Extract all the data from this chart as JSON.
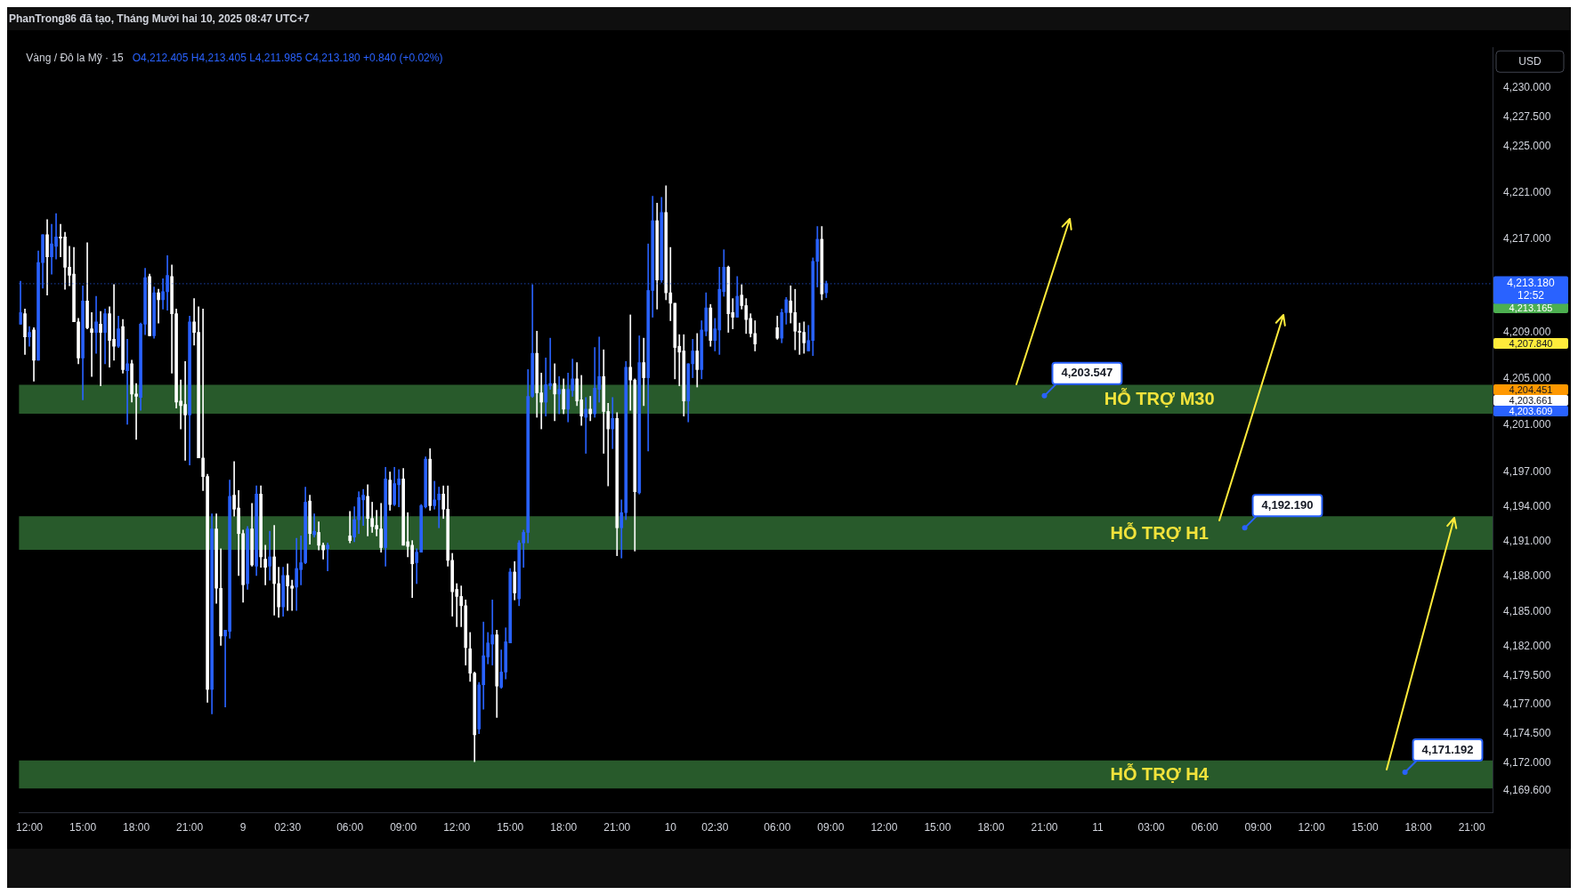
{
  "chart_data": {
    "type": "candlestick",
    "title": "PhanTrong86 đã tạo, Tháng Mười hai 10, 2025 08:47 UTC+7",
    "subtitle": "Vàng / Đô la Mỹ · 15",
    "ylabel": "USD",
    "series": [
      {
        "color": "#2962ff",
        "x": [
          "2025-12-08T11:30",
          "2025-12-08T12:00",
          "2025-12-08T12:30",
          "2025-12-08T12:45",
          "2025-12-08T13:15",
          "2025-12-08T13:30",
          "2025-12-08T15:00",
          "2025-12-08T15:45",
          "2025-12-08T16:15",
          "2025-12-08T17:00",
          "2025-12-08T17:30",
          "2025-12-08T18:15",
          "2025-12-08T18:30",
          "2025-12-08T19:00",
          "2025-12-08T19:30",
          "2025-12-08T19:45",
          "2025-12-08T21:00",
          "2025-12-08T22:15",
          "2025-12-08T23:00",
          "2025-12-08T23:15",
          "2025-12-09T00:15",
          "2025-12-09T00:45",
          "2025-12-09T01:30",
          "2025-12-09T02:15",
          "2025-12-09T03:00",
          "2025-12-09T03:15",
          "2025-12-09T03:30",
          "2025-12-09T04:00",
          "2025-12-09T04:45",
          "2025-12-09T06:15",
          "2025-12-09T06:30",
          "2025-12-09T06:45",
          "2025-12-09T08:00",
          "2025-12-09T08:30",
          "2025-12-09T08:45",
          "2025-12-09T09:45",
          "2025-12-09T10:00",
          "2025-12-09T10:15",
          "2025-12-09T10:45",
          "2025-12-09T11:00",
          "2025-12-09T13:15",
          "2025-12-09T13:30",
          "2025-12-09T13:45",
          "2025-12-09T14:00",
          "2025-12-09T14:30",
          "2025-12-09T14:45",
          "2025-12-09T15:00",
          "2025-12-09T15:30",
          "2025-12-09T15:45",
          "2025-12-09T16:00",
          "2025-12-09T16:15",
          "2025-12-09T17:00",
          "2025-12-09T17:15",
          "2025-12-09T17:45",
          "2025-12-09T18:15",
          "2025-12-09T18:30",
          "2025-12-09T19:15",
          "2025-12-09T19:45",
          "2025-12-09T20:00",
          "2025-12-09T20:45",
          "2025-12-09T21:15",
          "2025-12-09T21:30",
          "2025-12-09T22:15",
          "2025-12-09T22:45",
          "2025-12-09T23:00",
          "2025-12-09T23:30",
          "2025-12-10T01:00",
          "2025-12-10T01:15",
          "2025-12-10T01:45",
          "2025-12-10T02:00",
          "2025-12-10T02:30",
          "2025-12-10T02:45",
          "2025-12-10T03:00",
          "2025-12-10T03:45",
          "2025-12-10T06:15",
          "2025-12-10T06:30",
          "2025-12-10T07:45",
          "2025-12-10T08:00",
          "2025-12-10T08:15",
          "2025-12-10T08:45"
        ],
        "ohlc": [
          [
            4209.7,
            4213.4,
            4209.7,
            4210.7
          ],
          [
            4208.6,
            4209.5,
            4207.8,
            4209.0
          ],
          [
            4206.6,
            4216.0,
            4206.6,
            4215.0
          ],
          [
            4215.0,
            4217.4,
            4212.8,
            4217.4
          ],
          [
            4215.5,
            4218.3,
            4214.0,
            4216.6
          ],
          [
            4216.4,
            4219.2,
            4215.3,
            4217.2
          ],
          [
            4206.8,
            4213.0,
            4203.2,
            4211.7
          ],
          [
            4209.0,
            4212.1,
            4207.2,
            4209.9
          ],
          [
            4209.0,
            4211.0,
            4206.3,
            4210.6
          ],
          [
            4207.8,
            4210.4,
            4207.7,
            4209.3
          ],
          [
            4205.7,
            4208.4,
            4201.1,
            4206.3
          ],
          [
            4203.4,
            4209.8,
            4202.3,
            4209.7
          ],
          [
            4209.7,
            4214.5,
            4208.8,
            4213.7
          ],
          [
            4208.7,
            4212.9,
            4208.5,
            4212.4
          ],
          [
            4211.8,
            4213.6,
            4211.0,
            4212.5
          ],
          [
            4212.5,
            4215.6,
            4210.9,
            4213.9
          ],
          [
            4201.9,
            4210.4,
            4197.6,
            4209.9
          ],
          [
            4178.3,
            4193.4,
            4176.2,
            4192.1
          ],
          [
            4182.9,
            4183.4,
            4176.8,
            4183.4
          ],
          [
            4183.3,
            4196.3,
            4182.7,
            4194.9
          ],
          [
            4187.4,
            4192.3,
            4186.9,
            4192.1
          ],
          [
            4188.9,
            4195.8,
            4188.1,
            4195.1
          ],
          [
            4188.9,
            4191.9,
            4187.7,
            4189.7
          ],
          [
            4185.4,
            4188.8,
            4184.6,
            4188.1
          ],
          [
            4187.1,
            4191.3,
            4185.1,
            4188.7
          ],
          [
            4188.6,
            4191.5,
            4187.3,
            4189.2
          ],
          [
            4189.2,
            4195.7,
            4189.1,
            4194.4
          ],
          [
            4191.6,
            4193.4,
            4191.4,
            4191.9
          ],
          [
            4190.4,
            4190.9,
            4188.5,
            4190.7
          ],
          [
            4191.4,
            4194.0,
            4191.0,
            4192.9
          ],
          [
            4192.9,
            4195.3,
            4191.7,
            4194.8
          ],
          [
            4194.6,
            4195.5,
            4192.4,
            4195.0
          ],
          [
            4190.5,
            4197.4,
            4188.9,
            4196.4
          ],
          [
            4194.2,
            4197.4,
            4194.1,
            4196.0
          ],
          [
            4195.9,
            4197.2,
            4194.0,
            4196.4
          ],
          [
            4189.2,
            4190.4,
            4187.4,
            4190.1
          ],
          [
            4190.1,
            4194.2,
            4190.1,
            4194.1
          ],
          [
            4194.0,
            4198.3,
            4193.9,
            4198.1
          ],
          [
            4194.1,
            4196.2,
            4193.8,
            4194.6
          ],
          [
            4194.6,
            4195.7,
            4192.2,
            4195.1
          ],
          [
            4174.9,
            4178.9,
            4174.5,
            4178.7
          ],
          [
            4178.7,
            4184.1,
            4176.6,
            4181.2
          ],
          [
            4181.1,
            4183.2,
            4180.5,
            4182.3
          ],
          [
            4182.2,
            4186.0,
            4180.4,
            4183.0
          ],
          [
            4178.5,
            4181.7,
            4178.4,
            4179.8
          ],
          [
            4179.8,
            4183.6,
            4179.2,
            4182.4
          ],
          [
            4182.3,
            4188.7,
            4182.3,
            4188.4
          ],
          [
            4186.1,
            4191.1,
            4185.5,
            4190.9
          ],
          [
            4190.9,
            4192.0,
            4188.8,
            4191.8
          ],
          [
            4191.8,
            4205.8,
            4190.9,
            4203.5
          ],
          [
            4203.5,
            4213.1,
            4203.4,
            4207.2
          ],
          [
            4203.0,
            4206.8,
            4201.8,
            4204.5
          ],
          [
            4204.4,
            4208.5,
            4204.1,
            4204.6
          ],
          [
            4203.7,
            4205.2,
            4202.0,
            4204.1
          ],
          [
            4202.4,
            4205.5,
            4201.3,
            4204.1
          ],
          [
            4204.0,
            4206.7,
            4203.5,
            4205.0
          ],
          [
            4201.7,
            4203.4,
            4198.6,
            4202.4
          ],
          [
            4202.0,
            4207.7,
            4201.7,
            4204.2
          ],
          [
            4204.1,
            4208.6,
            4203.0,
            4205.2
          ],
          [
            4200.7,
            4203.4,
            4199.0,
            4201.6
          ],
          [
            4192.2,
            4194.6,
            4189.6,
            4193.5
          ],
          [
            4193.5,
            4206.5,
            4192.9,
            4206.0
          ],
          [
            4195.2,
            4208.7,
            4195.1,
            4206.4
          ],
          [
            4205.1,
            4216.6,
            4198.8,
            4212.6
          ],
          [
            4212.6,
            4220.7,
            4210.3,
            4218.6
          ],
          [
            4213.5,
            4220.6,
            4213.3,
            4219.3
          ],
          [
            4203.1,
            4206.3,
            4201.3,
            4206.3
          ],
          [
            4206.3,
            4208.4,
            4205.1,
            4207.4
          ],
          [
            4205.8,
            4210.0,
            4205.0,
            4209.2
          ],
          [
            4209.1,
            4212.4,
            4208.7,
            4211.1
          ],
          [
            4208.3,
            4210.2,
            4207.4,
            4209.3
          ],
          [
            4209.2,
            4214.6,
            4207.1,
            4212.7
          ],
          [
            4212.5,
            4216.1,
            4212.1,
            4214.6
          ],
          [
            4210.3,
            4213.8,
            4210.3,
            4212.1
          ],
          [
            4208.5,
            4211.0,
            4208.1,
            4210.7
          ],
          [
            4210.7,
            4212.0,
            4209.7,
            4211.8
          ],
          [
            4207.4,
            4209.6,
            4207.4,
            4208.3
          ],
          [
            4208.3,
            4215.4,
            4207.0,
            4215.1
          ],
          [
            4215.1,
            4218.1,
            4212.9,
            4217.0
          ],
          [
            4212.405,
            4213.405,
            4211.985,
            4213.18
          ]
        ]
      },
      {
        "color": "#ffffff",
        "x": [
          "2025-12-08T11:45",
          "2025-12-08T12:15",
          "2025-12-08T13:00",
          "2025-12-08T13:45",
          "2025-12-08T14:00",
          "2025-12-08T14:15",
          "2025-12-08T14:30",
          "2025-12-08T14:45",
          "2025-12-08T15:15",
          "2025-12-08T15:30",
          "2025-12-08T16:00",
          "2025-12-08T16:30",
          "2025-12-08T16:45",
          "2025-12-08T17:15",
          "2025-12-08T17:45",
          "2025-12-08T18:00",
          "2025-12-08T18:45",
          "2025-12-08T19:15",
          "2025-12-08T20:00",
          "2025-12-08T20:15",
          "2025-12-08T20:30",
          "2025-12-08T20:45",
          "2025-12-08T21:15",
          "2025-12-08T21:30",
          "2025-12-08T21:45",
          "2025-12-08T22:00",
          "2025-12-08T22:30",
          "2025-12-08T22:45",
          "2025-12-08T23:30",
          "2025-12-08T23:45",
          "2025-12-09T00:00",
          "2025-12-09T00:30",
          "2025-12-09T01:00",
          "2025-12-09T01:15",
          "2025-12-09T01:45",
          "2025-12-09T02:00",
          "2025-12-09T02:30",
          "2025-12-09T02:45",
          "2025-12-09T03:45",
          "2025-12-09T04:15",
          "2025-12-09T04:30",
          "2025-12-09T06:00",
          "2025-12-09T07:00",
          "2025-12-09T07:15",
          "2025-12-09T07:30",
          "2025-12-09T07:45",
          "2025-12-09T08:15",
          "2025-12-09T09:00",
          "2025-12-09T09:15",
          "2025-12-09T09:30",
          "2025-12-09T10:30",
          "2025-12-09T11:15",
          "2025-12-09T11:30",
          "2025-12-09T11:45",
          "2025-12-09T12:00",
          "2025-12-09T12:15",
          "2025-12-09T12:30",
          "2025-12-09T12:45",
          "2025-12-09T13:00",
          "2025-12-09T14:15",
          "2025-12-09T15:15",
          "2025-12-09T16:30",
          "2025-12-09T16:45",
          "2025-12-09T17:30",
          "2025-12-09T18:00",
          "2025-12-09T18:45",
          "2025-12-09T19:00",
          "2025-12-09T19:30",
          "2025-12-09T20:15",
          "2025-12-09T20:30",
          "2025-12-09T21:00",
          "2025-12-09T21:45",
          "2025-12-09T22:00",
          "2025-12-09T22:30",
          "2025-12-09T23:15",
          "2025-12-09T23:45",
          "2025-12-10T00:00",
          "2025-12-10T00:15",
          "2025-12-10T00:30",
          "2025-12-10T00:45",
          "2025-12-10T01:30",
          "2025-12-10T02:15",
          "2025-12-10T03:15",
          "2025-12-10T03:30",
          "2025-12-10T04:00",
          "2025-12-10T04:15",
          "2025-12-10T04:30",
          "2025-12-10T04:45",
          "2025-12-10T06:00",
          "2025-12-10T06:45",
          "2025-12-10T07:00",
          "2025-12-10T07:15",
          "2025-12-10T07:30",
          "2025-12-10T08:30"
        ],
        "ohlc": [
          [
            4210.6,
            4211.0,
            4207.1,
            4208.6
          ],
          [
            4209.2,
            4209.4,
            4204.8,
            4206.6
          ],
          [
            4217.4,
            4218.7,
            4212.2,
            4215.5
          ],
          [
            4217.2,
            4218.3,
            4215.5,
            4217.1
          ],
          [
            4217.2,
            4217.6,
            4212.7,
            4214.6
          ],
          [
            4214.6,
            4216.4,
            4213.0,
            4213.9
          ],
          [
            4214.0,
            4216.3,
            4209.9,
            4209.9
          ],
          [
            4209.9,
            4210.2,
            4206.3,
            4206.8
          ],
          [
            4211.7,
            4216.7,
            4209.3,
            4209.4
          ],
          [
            4209.3,
            4210.7,
            4205.2,
            4209.0
          ],
          [
            4209.7,
            4210.8,
            4204.4,
            4209.0
          ],
          [
            4210.6,
            4211.2,
            4206.0,
            4208.3
          ],
          [
            4208.4,
            4213.1,
            4206.6,
            4207.8
          ],
          [
            4209.5,
            4210.1,
            4205.5,
            4205.8
          ],
          [
            4206.3,
            4206.6,
            4203.0,
            4203.7
          ],
          [
            4203.7,
            4204.6,
            4199.8,
            4203.5
          ],
          [
            4213.8,
            4214.0,
            4208.7,
            4208.7
          ],
          [
            4212.4,
            4212.7,
            4209.8,
            4211.8
          ],
          [
            4213.8,
            4214.8,
            4205.5,
            4210.6
          ],
          [
            4210.6,
            4211.0,
            4202.5,
            4203.0
          ],
          [
            4203.1,
            4204.9,
            4200.7,
            4202.7
          ],
          [
            4202.8,
            4206.5,
            4198.0,
            4201.9
          ],
          [
            4209.9,
            4211.9,
            4207.9,
            4209.0
          ],
          [
            4209.0,
            4211.2,
            4198.2,
            4198.2
          ],
          [
            4198.2,
            4211.0,
            4195.4,
            4196.6
          ],
          [
            4196.6,
            4196.8,
            4177.2,
            4178.3
          ],
          [
            4192.1,
            4193.4,
            4185.7,
            4187.0
          ],
          [
            4187.0,
            4190.4,
            4182.1,
            4182.9
          ],
          [
            4195.0,
            4197.9,
            4193.2,
            4193.8
          ],
          [
            4193.9,
            4195.4,
            4188.1,
            4191.7
          ],
          [
            4191.7,
            4192.0,
            4185.8,
            4187.3
          ],
          [
            4192.1,
            4194.3,
            4188.9,
            4189.0
          ],
          [
            4195.1,
            4195.8,
            4188.8,
            4189.7
          ],
          [
            4189.5,
            4190.7,
            4187.3,
            4188.8
          ],
          [
            4189.7,
            4192.4,
            4184.7,
            4187.4
          ],
          [
            4187.4,
            4188.8,
            4184.5,
            4185.4
          ],
          [
            4188.1,
            4189.1,
            4185.1,
            4187.2
          ],
          [
            4187.2,
            4187.7,
            4185.1,
            4187.0
          ],
          [
            4194.5,
            4195.0,
            4190.8,
            4191.7
          ],
          [
            4191.8,
            4192.7,
            4190.3,
            4190.7
          ],
          [
            4190.7,
            4190.9,
            4189.5,
            4190.3
          ],
          [
            4191.5,
            4193.6,
            4190.9,
            4191.1
          ],
          [
            4194.9,
            4195.9,
            4191.5,
            4193.0
          ],
          [
            4193.0,
            4194.4,
            4191.8,
            4192.3
          ],
          [
            4192.4,
            4193.7,
            4191.5,
            4192.1
          ],
          [
            4192.1,
            4194.3,
            4190.1,
            4190.5
          ],
          [
            4196.3,
            4197.0,
            4193.7,
            4194.2
          ],
          [
            4196.4,
            4197.3,
            4190.7,
            4190.7
          ],
          [
            4191.0,
            4193.5,
            4189.7,
            4190.6
          ],
          [
            4190.7,
            4191.1,
            4186.2,
            4189.1
          ],
          [
            4198.1,
            4199.0,
            4193.7,
            4194.1
          ],
          [
            4195.1,
            4195.8,
            4193.0,
            4193.8
          ],
          [
            4193.8,
            4195.8,
            4188.9,
            4189.4
          ],
          [
            4189.4,
            4190.0,
            4184.6,
            4186.7
          ],
          [
            4186.9,
            4187.4,
            4183.7,
            4186.3
          ],
          [
            4186.3,
            4187.2,
            4183.7,
            4185.5
          ],
          [
            4185.5,
            4186.0,
            4180.4,
            4181.9
          ],
          [
            4181.8,
            4183.2,
            4179.0,
            4179.7
          ],
          [
            4179.7,
            4179.8,
            4172.1,
            4174.4
          ],
          [
            4183.0,
            4183.4,
            4175.9,
            4178.6
          ],
          [
            4188.4,
            4189.3,
            4186.0,
            4186.6
          ],
          [
            4207.2,
            4209.1,
            4201.7,
            4203.8
          ],
          [
            4203.8,
            4205.5,
            4200.7,
            4203.0
          ],
          [
            4204.6,
            4206.3,
            4201.4,
            4203.7
          ],
          [
            4204.1,
            4205.0,
            4202.0,
            4202.4
          ],
          [
            4205.0,
            4206.4,
            4202.7,
            4203.1
          ],
          [
            4203.2,
            4205.3,
            4201.0,
            4201.8
          ],
          [
            4202.4,
            4203.5,
            4201.4,
            4202.0
          ],
          [
            4205.2,
            4207.5,
            4198.6,
            4202.2
          ],
          [
            4202.2,
            4202.9,
            4195.8,
            4200.7
          ],
          [
            4201.6,
            4202.1,
            4189.8,
            4192.2
          ],
          [
            4206.0,
            4210.5,
            4202.3,
            4204.9
          ],
          [
            4204.9,
            4205.0,
            4190.2,
            4195.3
          ],
          [
            4206.4,
            4208.5,
            4202.7,
            4205.1
          ],
          [
            4218.6,
            4220.1,
            4211.0,
            4213.5
          ],
          [
            4219.3,
            4221.6,
            4211.8,
            4212.4
          ],
          [
            4212.4,
            4216.3,
            4210.0,
            4211.5
          ],
          [
            4211.5,
            4211.5,
            4205.0,
            4207.7
          ],
          [
            4207.8,
            4208.8,
            4204.4,
            4207.3
          ],
          [
            4207.4,
            4208.8,
            4201.8,
            4203.1
          ],
          [
            4207.4,
            4208.9,
            4204.3,
            4205.8
          ],
          [
            4211.1,
            4211.4,
            4207.8,
            4208.3
          ],
          [
            4214.6,
            4214.7,
            4209.0,
            4210.6
          ],
          [
            4210.7,
            4211.9,
            4209.3,
            4210.3
          ],
          [
            4212.2,
            4213.1,
            4211.0,
            4211.3
          ],
          [
            4211.3,
            4211.9,
            4208.9,
            4210.1
          ],
          [
            4210.2,
            4210.6,
            4208.6,
            4208.9
          ],
          [
            4208.9,
            4210.0,
            4207.4,
            4208.0
          ],
          [
            4209.4,
            4210.4,
            4208.4,
            4208.5
          ],
          [
            4211.7,
            4213.0,
            4209.8,
            4210.7
          ],
          [
            4210.7,
            4212.7,
            4207.5,
            4209.1
          ],
          [
            4209.1,
            4209.8,
            4207.1,
            4209.0
          ],
          [
            4209.0,
            4209.9,
            4207.2,
            4208.1
          ],
          [
            4217.0,
            4218.1,
            4211.8,
            4212.3
          ]
        ]
      }
    ],
    "xlim": [
      "2025-12-08T11:25",
      "2025-12-11T22:10"
    ],
    "xticks": [
      {
        "value": "2025-12-08T12:00",
        "label": "12:00"
      },
      {
        "value": "2025-12-08T15:00",
        "label": "15:00"
      },
      {
        "value": "2025-12-08T18:00",
        "label": "18:00"
      },
      {
        "value": "2025-12-08T21:00",
        "label": "21:00"
      },
      {
        "value": "2025-12-09T00:00",
        "label": "9"
      },
      {
        "value": "2025-12-09T02:30",
        "label": "02:30"
      },
      {
        "value": "2025-12-09T06:00",
        "label": "06:00"
      },
      {
        "value": "2025-12-09T09:00",
        "label": "09:00"
      },
      {
        "value": "2025-12-09T12:00",
        "label": "12:00"
      },
      {
        "value": "2025-12-09T15:00",
        "label": "15:00"
      },
      {
        "value": "2025-12-09T18:00",
        "label": "18:00"
      },
      {
        "value": "2025-12-09T21:00",
        "label": "21:00"
      },
      {
        "value": "2025-12-10T00:00",
        "label": "10"
      },
      {
        "value": "2025-12-10T02:30",
        "label": "02:30"
      },
      {
        "value": "2025-12-10T06:00",
        "label": "06:00"
      },
      {
        "value": "2025-12-10T09:00",
        "label": "09:00"
      },
      {
        "value": "2025-12-10T12:00",
        "label": "12:00"
      },
      {
        "value": "2025-12-10T15:00",
        "label": "15:00"
      },
      {
        "value": "2025-12-10T18:00",
        "label": "18:00"
      },
      {
        "value": "2025-12-10T21:00",
        "label": "21:00"
      },
      {
        "value": "2025-12-11T00:00",
        "label": "11"
      },
      {
        "value": "2025-12-11T03:00",
        "label": "03:00"
      },
      {
        "value": "2025-12-11T06:00",
        "label": "06:00"
      },
      {
        "value": "2025-12-11T09:00",
        "label": "09:00"
      },
      {
        "value": "2025-12-11T12:00",
        "label": "12:00"
      },
      {
        "value": "2025-12-11T15:00",
        "label": "15:00"
      },
      {
        "value": "2025-12-11T18:00",
        "label": "18:00"
      },
      {
        "value": "2025-12-11T21:00",
        "label": "21:00"
      }
    ],
    "ylim": [
      4167.7,
      4233.5
    ],
    "yticks": [
      {
        "value": 4230,
        "label": "4,230.000"
      },
      {
        "value": 4227.5,
        "label": "4,227.500"
      },
      {
        "value": 4225,
        "label": "4,225.000"
      },
      {
        "value": 4221,
        "label": "4,221.000"
      },
      {
        "value": 4217,
        "label": "4,217.000"
      },
      {
        "value": 4209,
        "label": "4,209.000"
      },
      {
        "value": 4205,
        "label": "4,205.000"
      },
      {
        "value": 4201,
        "label": "4,201.000"
      },
      {
        "value": 4197,
        "label": "4,197.000"
      },
      {
        "value": 4194,
        "label": "4,194.000"
      },
      {
        "value": 4191,
        "label": "4,191.000"
      },
      {
        "value": 4188,
        "label": "4,188.000"
      },
      {
        "value": 4185,
        "label": "4,185.000"
      },
      {
        "value": 4182,
        "label": "4,182.000"
      },
      {
        "value": 4179.5,
        "label": "4,179.500"
      },
      {
        "value": 4177,
        "label": "4,177.000"
      },
      {
        "value": 4174.5,
        "label": "4,174.500"
      },
      {
        "value": 4172,
        "label": "4,172.000"
      },
      {
        "value": 4169.6,
        "label": "4,169.600"
      }
    ],
    "ref_lines": [
      {
        "axis": "y",
        "value": 4213.18,
        "label": "4,213.180 12:52",
        "color": "#2962ff",
        "line_style": "dotted"
      }
    ],
    "bands": [
      {
        "axis": "y",
        "from": 4202.0,
        "to": 4204.5,
        "label": "HỖ TRỢ M30",
        "color": "#285a2b"
      },
      {
        "axis": "y",
        "from": 4190.3,
        "to": 4193.2,
        "label": "HỖ TRỢ H1",
        "color": "#285a2b"
      },
      {
        "axis": "y",
        "from": 4169.8,
        "to": 4172.2,
        "label": "HỖ TRỢ H4",
        "color": "#285a2b"
      }
    ],
    "annotations": [
      "O4,212.405 H4,213.405 L4,211.985 C4,213.180 +0.840 (+0.02%)",
      "4,213.165",
      "4,207.840",
      "4,204.451",
      "4,203.661",
      "4,203.609",
      {
        "text": "4,203.547",
        "x": "2025-12-10T21:00",
        "y": 4203.547
      },
      {
        "text": "4,192.190",
        "x": "2025-12-11T08:15",
        "y": 4192.19
      },
      {
        "text": "4,171.192",
        "x": "2025-12-11T17:15",
        "y": 4171.192
      }
    ]
  }
}
